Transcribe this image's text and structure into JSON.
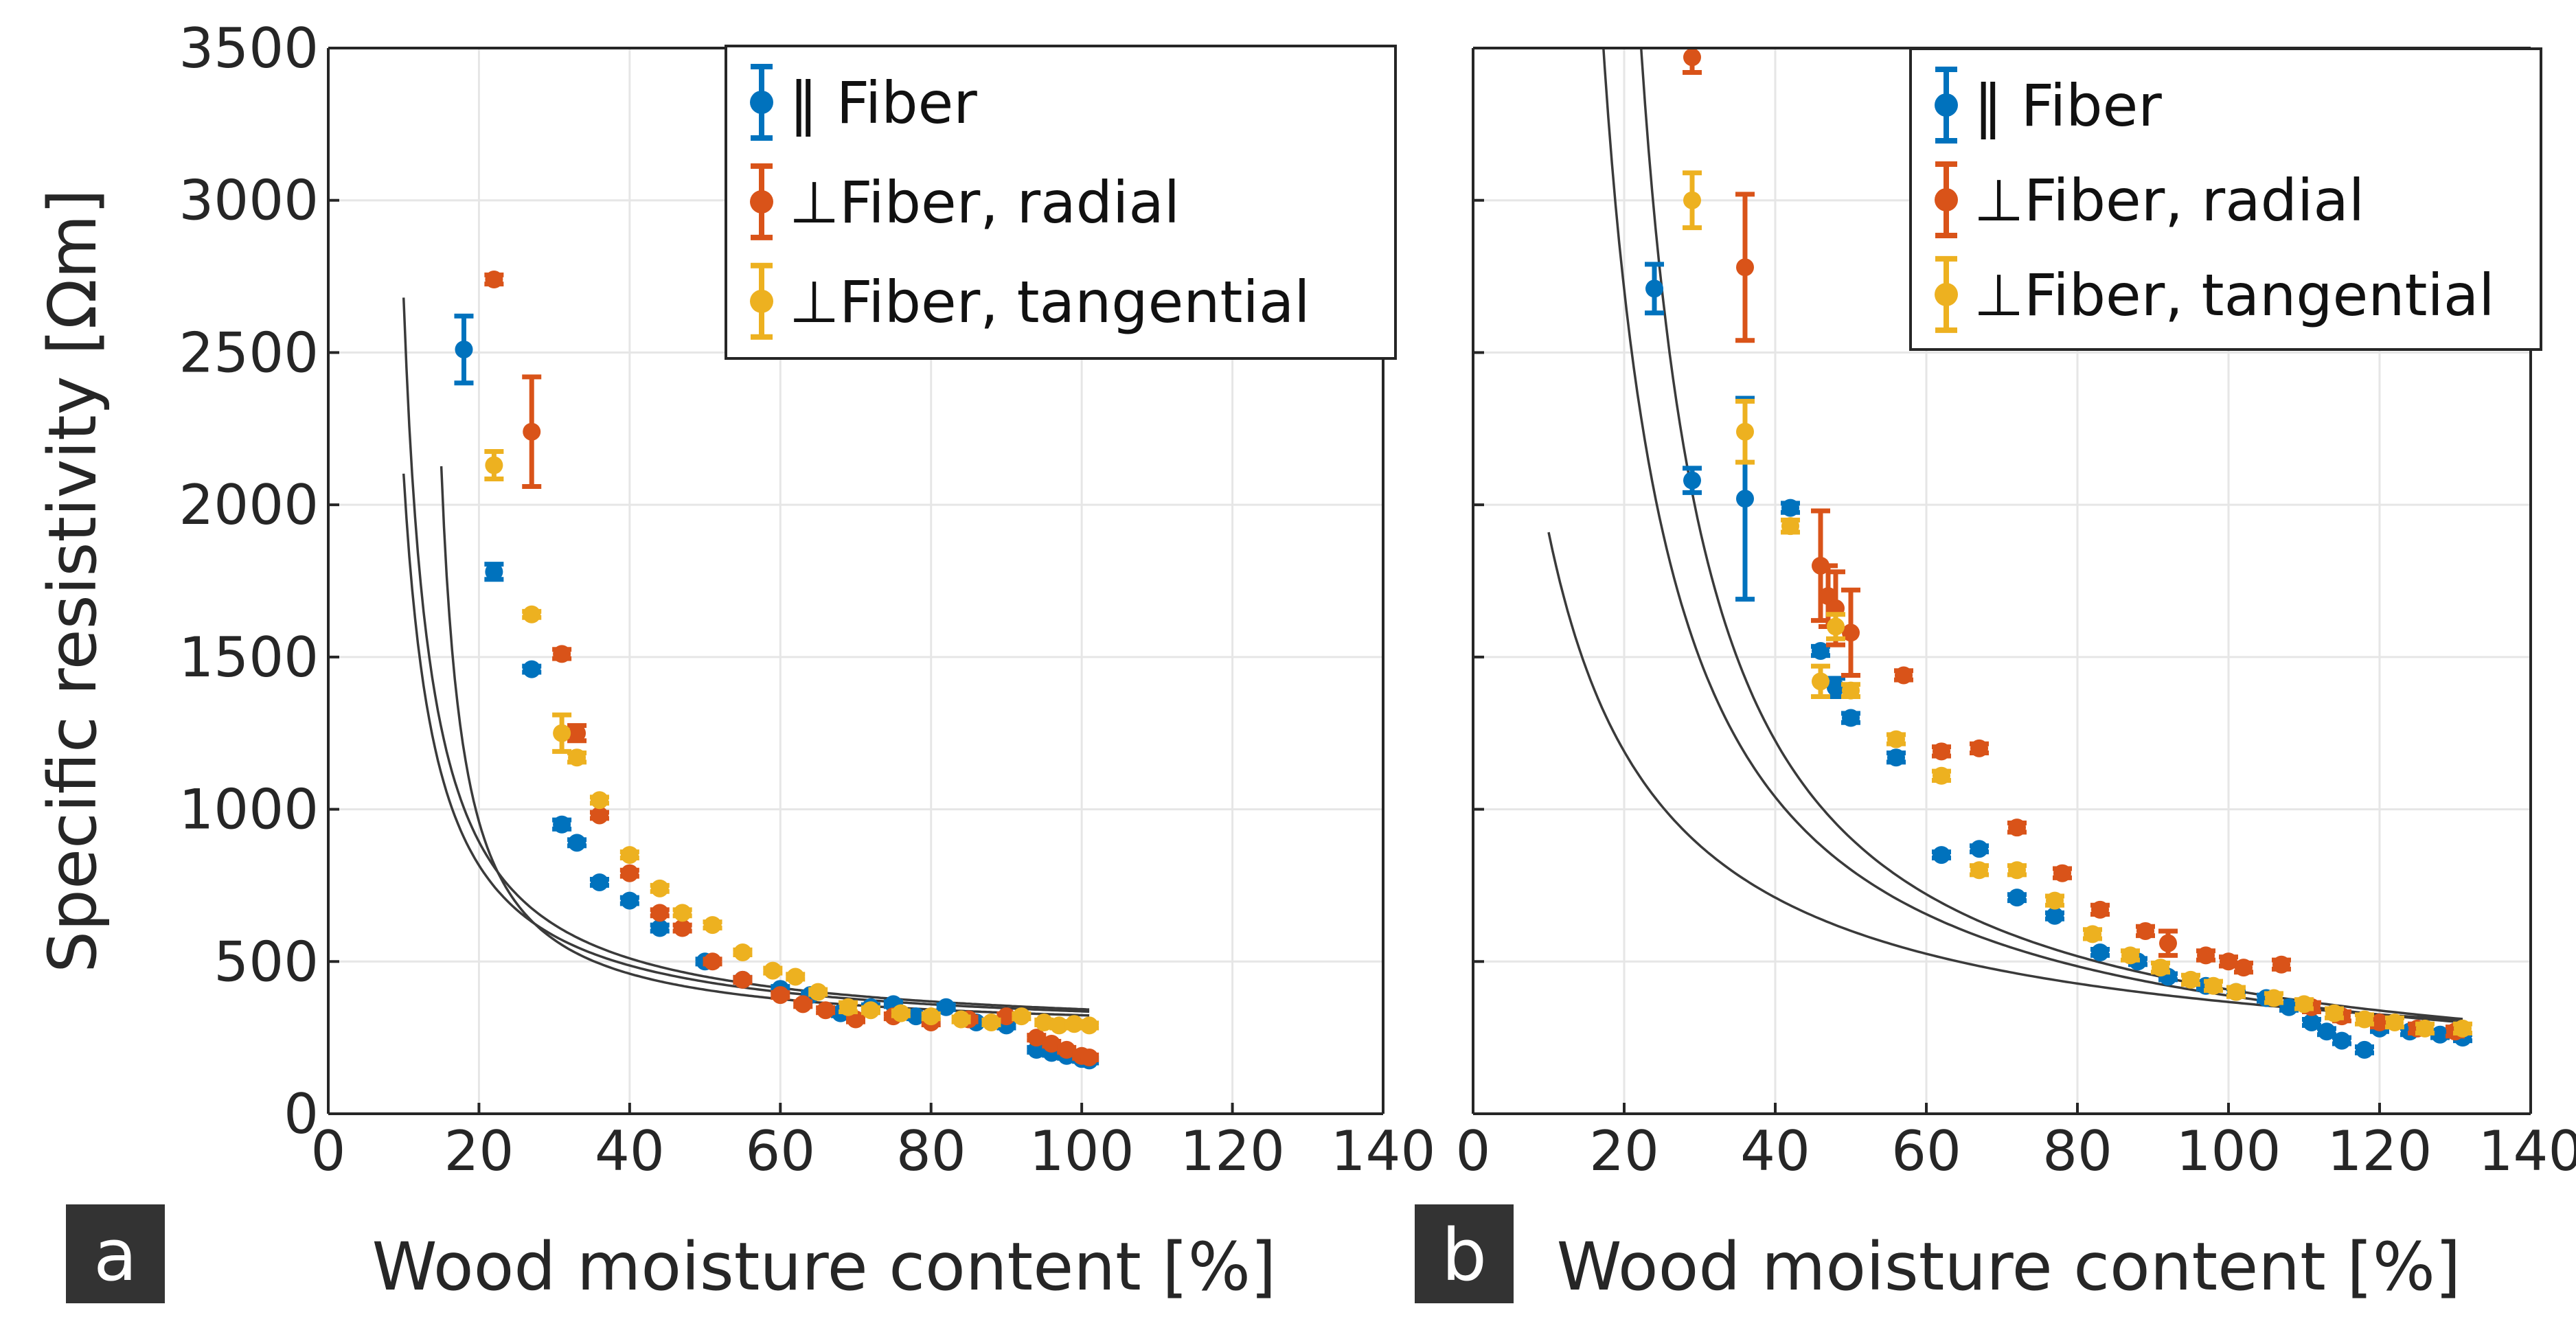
{
  "figure": {
    "colors": {
      "parallel": "#0072BD",
      "radial": "#D95319",
      "tangential": "#EDB120",
      "fit": "#3a3a3a",
      "grid": "#e6e6e6",
      "axis": "#262626"
    }
  },
  "chart_data": [
    {
      "type": "scatter",
      "panel_label": "a",
      "title": "",
      "xlabel": "Wood moisture content [%]",
      "ylabel": "Specific resistivity [Ωm]",
      "xlim": [
        0,
        140
      ],
      "ylim": [
        0,
        3500
      ],
      "xticks": [
        0,
        20,
        40,
        60,
        80,
        100,
        120,
        140
      ],
      "yticks": [
        0,
        500,
        1000,
        1500,
        2000,
        2500,
        3000,
        3500
      ],
      "xtick_labels": [
        "0",
        "20",
        "40",
        "60",
        "80",
        "100",
        "120",
        "140"
      ],
      "ytick_labels": [
        "0",
        "500",
        "1000",
        "1500",
        "2000",
        "2500",
        "3000",
        "3500"
      ],
      "grid": true,
      "legend_position": "top-right",
      "series": [
        {
          "name": "‖ Fiber",
          "color": "#0072BD",
          "points": [
            {
              "x": 18,
              "y": 2510,
              "err": 110
            },
            {
              "x": 22,
              "y": 1780,
              "err": 25
            },
            {
              "x": 27,
              "y": 1460,
              "err": 10
            },
            {
              "x": 31,
              "y": 950,
              "err": 15
            },
            {
              "x": 33,
              "y": 890,
              "err": 10
            },
            {
              "x": 36,
              "y": 760,
              "err": 10
            },
            {
              "x": 40,
              "y": 700,
              "err": 10
            },
            {
              "x": 44,
              "y": 610,
              "err": 10
            },
            {
              "x": 50,
              "y": 500,
              "err": 8
            },
            {
              "x": 55,
              "y": 440,
              "err": 8
            },
            {
              "x": 60,
              "y": 410,
              "err": 8
            },
            {
              "x": 64,
              "y": 390,
              "err": 8
            },
            {
              "x": 68,
              "y": 330,
              "err": 8
            },
            {
              "x": 72,
              "y": 350,
              "err": 8
            },
            {
              "x": 75,
              "y": 360,
              "err": 8
            },
            {
              "x": 78,
              "y": 320,
              "err": 8
            },
            {
              "x": 82,
              "y": 350,
              "err": 8
            },
            {
              "x": 86,
              "y": 300,
              "err": 8
            },
            {
              "x": 90,
              "y": 290,
              "err": 8
            },
            {
              "x": 94,
              "y": 210,
              "err": 8
            },
            {
              "x": 96,
              "y": 200,
              "err": 8
            },
            {
              "x": 98,
              "y": 190,
              "err": 8
            },
            {
              "x": 100,
              "y": 180,
              "err": 8
            },
            {
              "x": 101,
              "y": 175,
              "err": 8
            }
          ]
        },
        {
          "name": "⊥Fiber, radial",
          "color": "#D95319",
          "points": [
            {
              "x": 22,
              "y": 2740,
              "err": 15
            },
            {
              "x": 27,
              "y": 2240,
              "err": 180
            },
            {
              "x": 31,
              "y": 1510,
              "err": 15
            },
            {
              "x": 33,
              "y": 1250,
              "err": 25
            },
            {
              "x": 36,
              "y": 980,
              "err": 10
            },
            {
              "x": 40,
              "y": 790,
              "err": 10
            },
            {
              "x": 44,
              "y": 660,
              "err": 10
            },
            {
              "x": 47,
              "y": 610,
              "err": 10
            },
            {
              "x": 51,
              "y": 500,
              "err": 8
            },
            {
              "x": 55,
              "y": 440,
              "err": 8
            },
            {
              "x": 60,
              "y": 390,
              "err": 8
            },
            {
              "x": 63,
              "y": 360,
              "err": 8
            },
            {
              "x": 66,
              "y": 340,
              "err": 8
            },
            {
              "x": 70,
              "y": 310,
              "err": 8
            },
            {
              "x": 75,
              "y": 320,
              "err": 8
            },
            {
              "x": 80,
              "y": 300,
              "err": 8
            },
            {
              "x": 85,
              "y": 310,
              "err": 8
            },
            {
              "x": 90,
              "y": 320,
              "err": 8
            },
            {
              "x": 94,
              "y": 250,
              "err": 8
            },
            {
              "x": 96,
              "y": 230,
              "err": 8
            },
            {
              "x": 98,
              "y": 210,
              "err": 8
            },
            {
              "x": 100,
              "y": 190,
              "err": 8
            },
            {
              "x": 101,
              "y": 185,
              "err": 8
            }
          ]
        },
        {
          "name": "⊥Fiber, tangential",
          "color": "#EDB120",
          "points": [
            {
              "x": 22,
              "y": 2130,
              "err": 45
            },
            {
              "x": 27,
              "y": 1640,
              "err": 10
            },
            {
              "x": 31,
              "y": 1250,
              "err": 60
            },
            {
              "x": 33,
              "y": 1170,
              "err": 15
            },
            {
              "x": 36,
              "y": 1030,
              "err": 10
            },
            {
              "x": 40,
              "y": 850,
              "err": 10
            },
            {
              "x": 44,
              "y": 740,
              "err": 10
            },
            {
              "x": 47,
              "y": 660,
              "err": 10
            },
            {
              "x": 51,
              "y": 620,
              "err": 10
            },
            {
              "x": 55,
              "y": 530,
              "err": 8
            },
            {
              "x": 59,
              "y": 470,
              "err": 8
            },
            {
              "x": 62,
              "y": 450,
              "err": 8
            },
            {
              "x": 65,
              "y": 400,
              "err": 8
            },
            {
              "x": 69,
              "y": 350,
              "err": 15
            },
            {
              "x": 72,
              "y": 340,
              "err": 8
            },
            {
              "x": 76,
              "y": 330,
              "err": 8
            },
            {
              "x": 80,
              "y": 320,
              "err": 8
            },
            {
              "x": 84,
              "y": 310,
              "err": 8
            },
            {
              "x": 88,
              "y": 300,
              "err": 8
            },
            {
              "x": 92,
              "y": 320,
              "err": 8
            },
            {
              "x": 95,
              "y": 300,
              "err": 8
            },
            {
              "x": 97,
              "y": 290,
              "err": 8
            },
            {
              "x": 99,
              "y": 295,
              "err": 8
            },
            {
              "x": 101,
              "y": 290,
              "err": 8
            }
          ]
        }
      ],
      "fits": [
        {
          "x0": 5.6,
          "A": 8150,
          "c": 250,
          "xmin": 10,
          "xmax": 101
        },
        {
          "x0": 6.4,
          "A": 8750,
          "c": 250,
          "xmin": 10,
          "xmax": 101
        },
        {
          "x0": 12,
          "A": 5600,
          "c": 260,
          "xmin": 15,
          "xmax": 101
        }
      ]
    },
    {
      "type": "scatter",
      "panel_label": "b",
      "title": "",
      "xlabel": "Wood moisture content [%]",
      "ylabel": "",
      "xlim": [
        0,
        140
      ],
      "ylim": [
        0,
        3500
      ],
      "xticks": [
        0,
        20,
        40,
        60,
        80,
        100,
        120,
        140
      ],
      "yticks": [
        0,
        500,
        1000,
        1500,
        2000,
        2500,
        3000,
        3500
      ],
      "xtick_labels": [
        "0",
        "20",
        "40",
        "60",
        "80",
        "100",
        "120",
        "140"
      ],
      "ytick_labels": [
        "",
        "",
        "",
        "",
        "",
        "",
        "",
        ""
      ],
      "grid": true,
      "legend_position": "top-right",
      "series": [
        {
          "name": "‖ Fiber",
          "color": "#0072BD",
          "points": [
            {
              "x": 24,
              "y": 2710,
              "err": 80
            },
            {
              "x": 29,
              "y": 2080,
              "err": 40
            },
            {
              "x": 36,
              "y": 2020,
              "err": 330
            },
            {
              "x": 42,
              "y": 1990,
              "err": 15
            },
            {
              "x": 46,
              "y": 1520,
              "err": 15
            },
            {
              "x": 48,
              "y": 1400,
              "err": 30
            },
            {
              "x": 50,
              "y": 1300,
              "err": 15
            },
            {
              "x": 56,
              "y": 1170,
              "err": 15
            },
            {
              "x": 62,
              "y": 850,
              "err": 10
            },
            {
              "x": 67,
              "y": 870,
              "err": 10
            },
            {
              "x": 72,
              "y": 710,
              "err": 10
            },
            {
              "x": 77,
              "y": 650,
              "err": 10
            },
            {
              "x": 83,
              "y": 530,
              "err": 10
            },
            {
              "x": 88,
              "y": 500,
              "err": 10
            },
            {
              "x": 92,
              "y": 450,
              "err": 10
            },
            {
              "x": 97,
              "y": 420,
              "err": 10
            },
            {
              "x": 101,
              "y": 400,
              "err": 10
            },
            {
              "x": 105,
              "y": 380,
              "err": 10
            },
            {
              "x": 108,
              "y": 350,
              "err": 10
            },
            {
              "x": 111,
              "y": 300,
              "err": 10
            },
            {
              "x": 113,
              "y": 270,
              "err": 10
            },
            {
              "x": 115,
              "y": 240,
              "err": 10
            },
            {
              "x": 118,
              "y": 210,
              "err": 10
            },
            {
              "x": 120,
              "y": 280,
              "err": 10
            },
            {
              "x": 124,
              "y": 270,
              "err": 10
            },
            {
              "x": 128,
              "y": 260,
              "err": 10
            },
            {
              "x": 131,
              "y": 250,
              "err": 10
            }
          ]
        },
        {
          "name": "⊥Fiber, radial",
          "color": "#D95319",
          "points": [
            {
              "x": 29,
              "y": 3470,
              "err": 50
            },
            {
              "x": 36,
              "y": 2780,
              "err": 240
            },
            {
              "x": 46,
              "y": 1800,
              "err": 180
            },
            {
              "x": 47,
              "y": 1700,
              "err": 100
            },
            {
              "x": 48,
              "y": 1660,
              "err": 120
            },
            {
              "x": 50,
              "y": 1580,
              "err": 140
            },
            {
              "x": 57,
              "y": 1440,
              "err": 15
            },
            {
              "x": 62,
              "y": 1190,
              "err": 15
            },
            {
              "x": 67,
              "y": 1200,
              "err": 15
            },
            {
              "x": 72,
              "y": 940,
              "err": 15
            },
            {
              "x": 78,
              "y": 790,
              "err": 15
            },
            {
              "x": 83,
              "y": 670,
              "err": 15
            },
            {
              "x": 89,
              "y": 600,
              "err": 15
            },
            {
              "x": 92,
              "y": 560,
              "err": 40
            },
            {
              "x": 97,
              "y": 520,
              "err": 15
            },
            {
              "x": 100,
              "y": 500,
              "err": 15
            },
            {
              "x": 102,
              "y": 480,
              "err": 15
            },
            {
              "x": 107,
              "y": 490,
              "err": 15
            },
            {
              "x": 111,
              "y": 350,
              "err": 15
            },
            {
              "x": 115,
              "y": 320,
              "err": 15
            },
            {
              "x": 120,
              "y": 300,
              "err": 15
            },
            {
              "x": 125,
              "y": 280,
              "err": 15
            },
            {
              "x": 130,
              "y": 270,
              "err": 15
            }
          ]
        },
        {
          "name": "⊥Fiber, tangential",
          "color": "#EDB120",
          "points": [
            {
              "x": 29,
              "y": 3000,
              "err": 90
            },
            {
              "x": 36,
              "y": 2240,
              "err": 100
            },
            {
              "x": 42,
              "y": 1930,
              "err": 20
            },
            {
              "x": 46,
              "y": 1420,
              "err": 50
            },
            {
              "x": 48,
              "y": 1600,
              "err": 40
            },
            {
              "x": 50,
              "y": 1390,
              "err": 20
            },
            {
              "x": 56,
              "y": 1230,
              "err": 15
            },
            {
              "x": 62,
              "y": 1110,
              "err": 15
            },
            {
              "x": 67,
              "y": 800,
              "err": 15
            },
            {
              "x": 72,
              "y": 800,
              "err": 15
            },
            {
              "x": 77,
              "y": 700,
              "err": 15
            },
            {
              "x": 82,
              "y": 590,
              "err": 15
            },
            {
              "x": 87,
              "y": 520,
              "err": 15
            },
            {
              "x": 91,
              "y": 480,
              "err": 15
            },
            {
              "x": 95,
              "y": 440,
              "err": 15
            },
            {
              "x": 98,
              "y": 420,
              "err": 15
            },
            {
              "x": 101,
              "y": 400,
              "err": 15
            },
            {
              "x": 106,
              "y": 380,
              "err": 15
            },
            {
              "x": 110,
              "y": 360,
              "err": 15
            },
            {
              "x": 114,
              "y": 330,
              "err": 15
            },
            {
              "x": 118,
              "y": 310,
              "err": 15
            },
            {
              "x": 122,
              "y": 300,
              "err": 15
            },
            {
              "x": 126,
              "y": 280,
              "err": 15
            },
            {
              "x": 131,
              "y": 280,
              "err": 15
            }
          ]
        }
      ],
      "fits": [
        {
          "x0": -5,
          "A": 27000,
          "c": 110,
          "xmin": 10,
          "xmax": 131
        },
        {
          "x0": 8,
          "A": 32000,
          "c": 40,
          "xmin": 15,
          "xmax": 131
        },
        {
          "x0": 13,
          "A": 32000,
          "c": 40,
          "xmin": 20,
          "xmax": 131
        }
      ]
    }
  ]
}
